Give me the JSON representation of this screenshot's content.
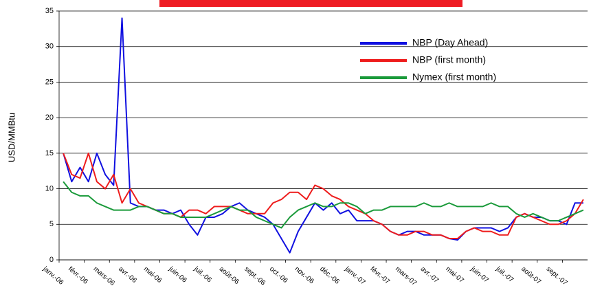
{
  "chart_data": {
    "type": "line",
    "ylabel": "USD/MMBtu",
    "categories": [
      "janv.-06",
      null,
      null,
      "févr.-06",
      null,
      null,
      "mars-06",
      null,
      null,
      "avr.-06",
      null,
      null,
      "mai-06",
      null,
      null,
      "juin-06",
      null,
      null,
      "juil.-06",
      null,
      null,
      "août-06",
      null,
      null,
      "sept.-06",
      null,
      null,
      "oct.-06",
      null,
      null,
      "nov.-06",
      null,
      null,
      "déc.-06",
      null,
      null,
      "janv.-07",
      null,
      null,
      "févr.-07",
      null,
      null,
      "mars-07",
      null,
      null,
      "avr.-07",
      null,
      null,
      "mai-07",
      null,
      null,
      "juin-07",
      null,
      null,
      "juil.-07",
      null,
      null,
      "août-07",
      null,
      null,
      "sept.-07",
      null,
      null
    ],
    "series": [
      {
        "name": "NBP (Day Ahead)",
        "color": "#1010e0",
        "values": [
          15,
          11,
          13,
          11,
          15,
          12,
          10.5,
          34,
          8,
          7.5,
          7.5,
          7,
          7,
          6.5,
          7,
          5,
          3.5,
          6,
          6,
          6.5,
          7.5,
          8,
          7,
          6.5,
          6,
          5,
          3,
          1,
          4,
          6,
          8,
          7,
          8,
          6.5,
          7,
          5.5,
          5.5,
          5.5,
          5,
          4,
          3.5,
          4,
          4,
          3.5,
          3.5,
          3.5,
          3,
          2.8,
          4,
          4.5,
          4.5,
          4.5,
          4,
          4.5,
          6,
          6.5,
          6,
          6,
          5.5,
          5.5,
          5,
          8,
          8
        ]
      },
      {
        "name": "NBP (first month)",
        "color": "#ee1c1c",
        "values": [
          15,
          12,
          11.5,
          15,
          11,
          10,
          12,
          8,
          10,
          8,
          7.5,
          7,
          6.5,
          6.5,
          6,
          7,
          7,
          6.5,
          7.5,
          7.5,
          7.5,
          7,
          6.5,
          6.5,
          6.5,
          8,
          8.5,
          9.5,
          9.5,
          8.5,
          10.5,
          10,
          9,
          8.5,
          7.5,
          7,
          6.5,
          5.5,
          5,
          4,
          3.5,
          3.5,
          4,
          4,
          3.5,
          3.5,
          3,
          3,
          4,
          4.5,
          4,
          4,
          3.5,
          3.5,
          6,
          6.5,
          6,
          5.5,
          5,
          5,
          5.5,
          6.5,
          8.5
        ]
      },
      {
        "name": "Nymex (first month)",
        "color": "#1a9a3a",
        "values": [
          11,
          9.5,
          9,
          9,
          8,
          7.5,
          7,
          7,
          7,
          7.5,
          7.5,
          7,
          6.5,
          6.5,
          6,
          6,
          6,
          6,
          6.5,
          7,
          7.5,
          7,
          7,
          6,
          5.5,
          5,
          4.5,
          6,
          7,
          7.5,
          8,
          7.5,
          7.5,
          8,
          8,
          7.5,
          6.5,
          7,
          7,
          7.5,
          7.5,
          7.5,
          7.5,
          8,
          7.5,
          7.5,
          8,
          7.5,
          7.5,
          7.5,
          7.5,
          8,
          7.5,
          7.5,
          6.5,
          6,
          6.5,
          6,
          5.5,
          5.5,
          6,
          6.5,
          7
        ]
      }
    ],
    "ylim": [
      0,
      35
    ],
    "yticks": [
      0,
      5,
      10,
      15,
      20,
      25,
      30,
      35
    ],
    "grid": true
  }
}
